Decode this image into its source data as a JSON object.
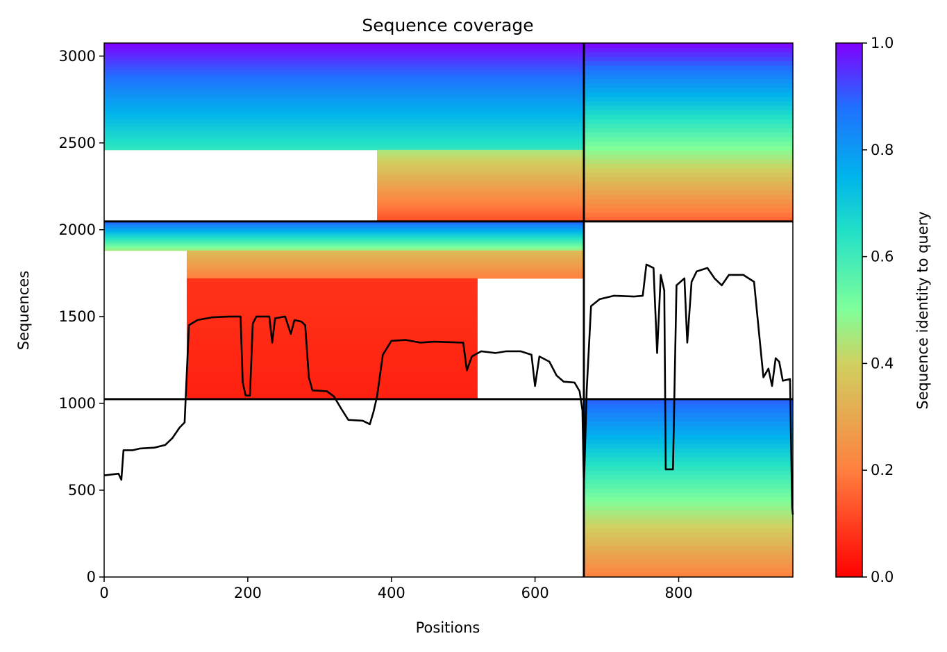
{
  "chart_data": {
    "type": "heatmap",
    "title": "Sequence coverage",
    "xlabel": "Positions",
    "ylabel": "Sequences",
    "xlim": [
      0,
      959
    ],
    "ylim": [
      0,
      3075
    ],
    "xticks": [
      0,
      200,
      400,
      600,
      800
    ],
    "yticks": [
      0,
      500,
      1000,
      1500,
      2000,
      2500,
      3000
    ],
    "colorbar": {
      "label": "Sequence identity to query",
      "colormap": "rainbow_r",
      "range": [
        0.0,
        1.0
      ],
      "ticks": [
        "0.0",
        "0.2",
        "0.4",
        "0.6",
        "0.8",
        "1.0"
      ]
    },
    "chain_boundaries": {
      "x": [
        668
      ],
      "y": [
        1024,
        2048
      ]
    },
    "coverage_blocks": [
      {
        "x": [
          0,
          668
        ],
        "y": [
          2460,
          3075
        ],
        "identity": [
          0.62,
          1.0
        ]
      },
      {
        "x": [
          380,
          668
        ],
        "y": [
          2048,
          2460
        ],
        "identity": [
          0.12,
          0.45
        ]
      },
      {
        "x": [
          668,
          959
        ],
        "y": [
          2048,
          3075
        ],
        "identity": [
          0.15,
          1.0
        ]
      },
      {
        "x": [
          0,
          668
        ],
        "y": [
          1880,
          2048
        ],
        "identity": [
          0.45,
          0.9
        ]
      },
      {
        "x": [
          115,
          668
        ],
        "y": [
          1720,
          1880
        ],
        "identity": [
          0.2,
          0.35
        ]
      },
      {
        "x": [
          115,
          520
        ],
        "y": [
          1024,
          1720
        ],
        "identity": [
          0.05,
          0.08
        ]
      },
      {
        "x": [
          668,
          959
        ],
        "y": [
          0,
          1024
        ],
        "identity": [
          0.2,
          0.9
        ]
      }
    ],
    "series": [
      {
        "name": "",
        "type": "line",
        "color": "#000000",
        "points": [
          [
            0,
            585
          ],
          [
            20,
            595
          ],
          [
            24,
            560
          ],
          [
            27,
            730
          ],
          [
            40,
            730
          ],
          [
            50,
            740
          ],
          [
            70,
            745
          ],
          [
            85,
            760
          ],
          [
            95,
            800
          ],
          [
            105,
            860
          ],
          [
            112,
            890
          ],
          [
            118,
            1450
          ],
          [
            130,
            1480
          ],
          [
            150,
            1495
          ],
          [
            175,
            1500
          ],
          [
            190,
            1500
          ],
          [
            193,
            1120
          ],
          [
            197,
            1045
          ],
          [
            203,
            1045
          ],
          [
            207,
            1460
          ],
          [
            212,
            1500
          ],
          [
            230,
            1500
          ],
          [
            234,
            1350
          ],
          [
            238,
            1490
          ],
          [
            252,
            1500
          ],
          [
            260,
            1400
          ],
          [
            265,
            1480
          ],
          [
            275,
            1470
          ],
          [
            280,
            1450
          ],
          [
            285,
            1150
          ],
          [
            290,
            1075
          ],
          [
            310,
            1070
          ],
          [
            320,
            1040
          ],
          [
            330,
            970
          ],
          [
            340,
            905
          ],
          [
            360,
            900
          ],
          [
            370,
            880
          ],
          [
            375,
            950
          ],
          [
            380,
            1040
          ],
          [
            388,
            1280
          ],
          [
            400,
            1360
          ],
          [
            420,
            1365
          ],
          [
            440,
            1350
          ],
          [
            460,
            1355
          ],
          [
            500,
            1350
          ],
          [
            505,
            1190
          ],
          [
            512,
            1270
          ],
          [
            525,
            1300
          ],
          [
            545,
            1290
          ],
          [
            560,
            1300
          ],
          [
            580,
            1300
          ],
          [
            595,
            1280
          ],
          [
            600,
            1100
          ],
          [
            606,
            1270
          ],
          [
            620,
            1240
          ],
          [
            630,
            1160
          ],
          [
            640,
            1125
          ],
          [
            655,
            1120
          ],
          [
            662,
            1070
          ],
          [
            666,
            960
          ],
          [
            668,
            520
          ],
          [
            672,
            1080
          ],
          [
            678,
            1560
          ],
          [
            690,
            1600
          ],
          [
            710,
            1620
          ],
          [
            738,
            1615
          ],
          [
            750,
            1620
          ],
          [
            755,
            1800
          ],
          [
            765,
            1780
          ],
          [
            770,
            1290
          ],
          [
            775,
            1740
          ],
          [
            780,
            1650
          ],
          [
            782,
            620
          ],
          [
            792,
            620
          ],
          [
            797,
            1680
          ],
          [
            808,
            1720
          ],
          [
            812,
            1350
          ],
          [
            818,
            1700
          ],
          [
            825,
            1760
          ],
          [
            840,
            1780
          ],
          [
            850,
            1720
          ],
          [
            860,
            1680
          ],
          [
            870,
            1740
          ],
          [
            890,
            1740
          ],
          [
            905,
            1700
          ],
          [
            912,
            1400
          ],
          [
            918,
            1150
          ],
          [
            925,
            1200
          ],
          [
            930,
            1100
          ],
          [
            935,
            1260
          ],
          [
            940,
            1240
          ],
          [
            945,
            1130
          ],
          [
            955,
            1140
          ],
          [
            958,
            400
          ],
          [
            959,
            360
          ]
        ]
      }
    ]
  }
}
